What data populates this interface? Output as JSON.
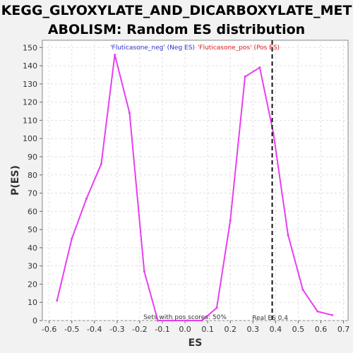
{
  "chart_data": {
    "type": "line",
    "title_line1": "KEGG_GLYOXYLATE_AND_DICARBOXYLATE_MET",
    "title_line2": "ABOLISM: Random ES distribution",
    "xlabel": "ES",
    "ylabel": "P(ES)",
    "xlim": [
      -0.63,
      0.72
    ],
    "ylim": [
      0,
      154
    ],
    "x_ticks": [
      -0.6,
      -0.5,
      -0.4,
      -0.3,
      -0.2,
      -0.1,
      0.0,
      0.1,
      0.2,
      0.3,
      0.4,
      0.5,
      0.6,
      0.7
    ],
    "x_tick_labels": [
      "-0.6",
      "-0.5",
      "-0.4",
      "-0.3",
      "-0.2",
      "-0.1",
      "0.0",
      "0.1",
      "0.2",
      "0.3",
      "0.4",
      "0.5",
      "0.6",
      "0.7"
    ],
    "y_ticks": [
      0,
      10,
      20,
      30,
      40,
      50,
      60,
      70,
      80,
      90,
      100,
      110,
      120,
      130,
      140,
      150
    ],
    "y_tick_labels": [
      "0",
      "10",
      "20",
      "30",
      "40",
      "50",
      "60",
      "70",
      "80",
      "90",
      "100",
      "110",
      "120",
      "130",
      "140",
      "150"
    ],
    "grid": true,
    "series": [
      {
        "color": "#e63ff0",
        "points": [
          [
            -0.565,
            11
          ],
          [
            -0.5,
            45
          ],
          [
            -0.435,
            67
          ],
          [
            -0.37,
            86
          ],
          [
            -0.31,
            146
          ],
          [
            -0.245,
            114
          ],
          [
            -0.18,
            27
          ],
          [
            -0.12,
            0
          ],
          [
            -0.055,
            0
          ],
          [
            0.01,
            0
          ],
          [
            0.075,
            0
          ],
          [
            0.14,
            7
          ],
          [
            0.2,
            55
          ],
          [
            0.265,
            134
          ],
          [
            0.33,
            139
          ],
          [
            0.39,
            103
          ],
          [
            0.455,
            47
          ],
          [
            0.52,
            17
          ],
          [
            0.585,
            5
          ],
          [
            0.65,
            3
          ]
        ]
      }
    ],
    "real_es": 0.385,
    "real_es_label": "Real ES 0.4",
    "legend_neg": "'Fluticasone_neg' (Neg ES)",
    "legend_pos": "'Fluticasone_pos' (Pos ES)",
    "legend_neg_color": "#3333cc",
    "legend_pos_color": "#dd2222",
    "sets_label": "Sets with pos scores: 50%"
  }
}
